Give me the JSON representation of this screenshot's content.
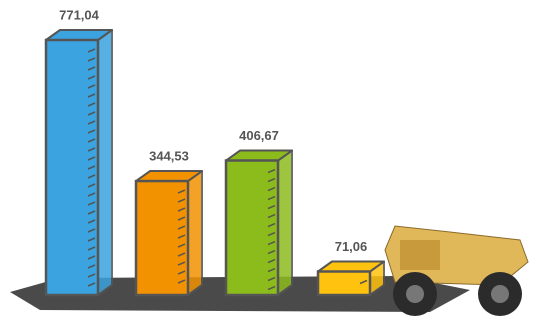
{
  "chart_data": {
    "type": "bar",
    "categories": [
      null,
      null,
      null,
      null
    ],
    "values": [
      771.04,
      344.53,
      406.67,
      71.06
    ],
    "value_labels": [
      "771,04",
      "344,53",
      "406,67",
      "71,06"
    ],
    "colors": [
      "#3aa3e0",
      "#f39200",
      "#8cbb1c",
      "#ffc20e"
    ]
  }
}
